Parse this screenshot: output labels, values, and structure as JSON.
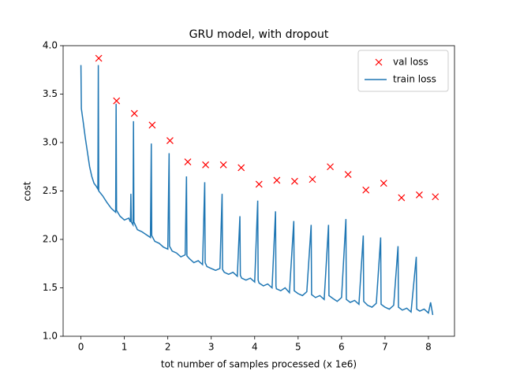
{
  "chart_data": {
    "type": "line",
    "title": "GRU model, with dropout",
    "xlabel": "tot number of samples processed (x 1e6)",
    "ylabel": "cost",
    "xlim": [
      -0.41,
      8.6
    ],
    "ylim": [
      1.0,
      4.0
    ],
    "xticks": [
      0,
      1,
      2,
      3,
      4,
      5,
      6,
      7,
      8
    ],
    "yticks": [
      {
        "value": 1.0,
        "label": "1.0"
      },
      {
        "value": 1.5,
        "label": "1.5"
      },
      {
        "value": 2.0,
        "label": "2.0"
      },
      {
        "value": 2.5,
        "label": "2.5"
      },
      {
        "value": 3.0,
        "label": "3.0"
      },
      {
        "value": 3.5,
        "label": "3.5"
      },
      {
        "value": 4.0,
        "label": "4.0"
      }
    ],
    "legend": "upper right",
    "series": [
      {
        "name": "val loss",
        "color": "#ff0000",
        "marker": "x",
        "x": [
          0.41,
          0.82,
          1.23,
          1.64,
          2.05,
          2.46,
          2.87,
          3.28,
          3.69,
          4.1,
          4.51,
          4.92,
          5.33,
          5.74,
          6.15,
          6.56,
          6.97,
          7.38,
          7.79,
          8.16
        ],
        "values": [
          3.87,
          3.43,
          3.3,
          3.18,
          3.02,
          2.8,
          2.77,
          2.77,
          2.74,
          2.57,
          2.61,
          2.6,
          2.62,
          2.75,
          2.67,
          2.51,
          2.58,
          2.43,
          2.46,
          2.44
        ]
      },
      {
        "name": "train loss",
        "color": "#1f77b4",
        "x": [
          0,
          0.01,
          0.05,
          0.1,
          0.15,
          0.2,
          0.25,
          0.3,
          0.35,
          0.39,
          0.4,
          0.41,
          0.5,
          0.6,
          0.7,
          0.8,
          0.81,
          0.82,
          0.9,
          1.0,
          1.1,
          1.14,
          1.15,
          1.16,
          1.2,
          1.21,
          1.22,
          1.3,
          1.4,
          1.5,
          1.6,
          1.62,
          1.63,
          1.7,
          1.8,
          1.9,
          2.0,
          2.03,
          2.04,
          2.1,
          2.2,
          2.3,
          2.4,
          2.43,
          2.44,
          2.5,
          2.6,
          2.7,
          2.8,
          2.85,
          2.86,
          2.9,
          3.0,
          3.1,
          3.2,
          3.25,
          3.26,
          3.3,
          3.4,
          3.5,
          3.6,
          3.66,
          3.67,
          3.7,
          3.8,
          3.9,
          4.0,
          4.07,
          4.08,
          4.1,
          4.2,
          4.3,
          4.4,
          4.48,
          4.49,
          4.5,
          4.6,
          4.7,
          4.8,
          4.9,
          4.91,
          5.0,
          5.1,
          5.2,
          5.3,
          5.31,
          5.4,
          5.5,
          5.6,
          5.7,
          5.71,
          5.8,
          5.9,
          6.0,
          6.1,
          6.11,
          6.2,
          6.3,
          6.4,
          6.5,
          6.51,
          6.6,
          6.7,
          6.8,
          6.9,
          6.91,
          7.0,
          7.1,
          7.2,
          7.3,
          7.31,
          7.4,
          7.5,
          7.6,
          7.72,
          7.73,
          7.8,
          7.9,
          8.0,
          8.05,
          8.1
        ],
        "values": [
          3.8,
          3.35,
          3.22,
          3.05,
          2.9,
          2.75,
          2.65,
          2.58,
          2.55,
          2.52,
          3.8,
          2.5,
          2.45,
          2.38,
          2.32,
          2.28,
          3.4,
          2.3,
          2.24,
          2.2,
          2.22,
          2.18,
          2.47,
          2.18,
          2.15,
          3.22,
          2.18,
          2.1,
          2.08,
          2.05,
          2.02,
          2.99,
          2.04,
          1.98,
          1.96,
          1.92,
          1.9,
          2.89,
          1.93,
          1.88,
          1.86,
          1.82,
          1.84,
          2.65,
          1.83,
          1.8,
          1.76,
          1.78,
          1.74,
          2.59,
          1.76,
          1.72,
          1.7,
          1.68,
          1.7,
          2.47,
          1.69,
          1.66,
          1.64,
          1.66,
          1.62,
          2.24,
          1.63,
          1.6,
          1.58,
          1.6,
          1.56,
          2.4,
          1.58,
          1.55,
          1.52,
          1.54,
          1.5,
          2.29,
          1.52,
          1.49,
          1.47,
          1.5,
          1.45,
          2.19,
          1.47,
          1.44,
          1.42,
          1.46,
          2.15,
          1.43,
          1.4,
          1.42,
          1.38,
          2.15,
          1.42,
          1.39,
          1.36,
          1.4,
          2.21,
          1.38,
          1.35,
          1.37,
          1.33,
          2.04,
          1.36,
          1.32,
          1.3,
          1.34,
          2.02,
          1.33,
          1.3,
          1.28,
          1.32,
          1.93,
          1.3,
          1.27,
          1.29,
          1.25,
          1.82,
          1.28,
          1.26,
          1.28,
          1.24,
          1.35,
          1.22
        ]
      }
    ]
  }
}
